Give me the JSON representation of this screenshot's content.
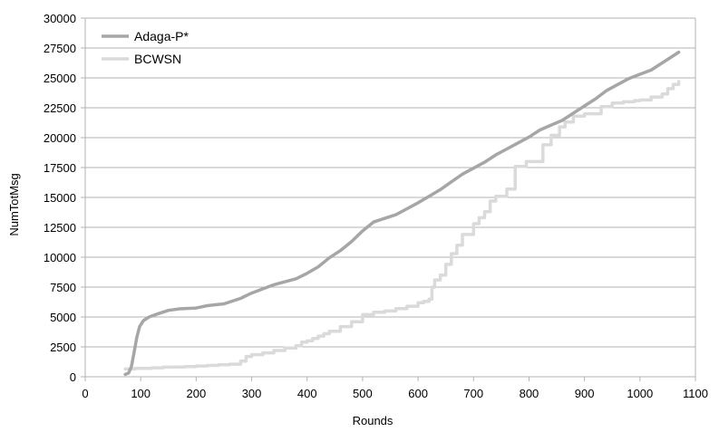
{
  "chart_data": {
    "type": "line",
    "title": "",
    "xlabel": "Rounds",
    "ylabel": "NumTotMsg",
    "xlim": [
      0,
      1100
    ],
    "ylim": [
      0,
      30000
    ],
    "xticks": [
      "0",
      "100",
      "200",
      "300",
      "400",
      "500",
      "600",
      "700",
      "800",
      "900",
      "1000",
      "1100"
    ],
    "yticks": [
      "0",
      "2500",
      "5000",
      "7500",
      "10000",
      "12500",
      "15000",
      "17500",
      "20000",
      "22500",
      "25000",
      "27500",
      "30000"
    ],
    "grid": "horizontal",
    "legend": "top-left",
    "series": [
      {
        "name": "Adaga-P*",
        "color": "#a6a6a6",
        "x": [
          72,
          78,
          83,
          88,
          93,
          98,
          105,
          115,
          130,
          150,
          170,
          200,
          220,
          250,
          280,
          300,
          320,
          340,
          360,
          380,
          400,
          420,
          440,
          460,
          480,
          500,
          520,
          540,
          560,
          580,
          600,
          620,
          640,
          660,
          680,
          700,
          720,
          740,
          760,
          780,
          800,
          820,
          840,
          860,
          880,
          900,
          920,
          940,
          960,
          980,
          1000,
          1020,
          1040,
          1060,
          1070
        ],
        "y": [
          200,
          300,
          800,
          2000,
          3300,
          4200,
          4700,
          5000,
          5250,
          5550,
          5680,
          5750,
          5950,
          6100,
          6550,
          7000,
          7350,
          7700,
          7950,
          8200,
          8650,
          9200,
          9950,
          10550,
          11300,
          12200,
          12950,
          13250,
          13550,
          14050,
          14550,
          15100,
          15650,
          16300,
          16950,
          17450,
          17950,
          18550,
          19050,
          19550,
          20050,
          20650,
          21050,
          21450,
          22050,
          22650,
          23250,
          23950,
          24450,
          24950,
          25300,
          25650,
          26250,
          26850,
          27150
        ]
      },
      {
        "name": "BCWSN",
        "color": "#dadada",
        "x": [
          72,
          90,
          100,
          120,
          140,
          160,
          180,
          200,
          220,
          240,
          260,
          280,
          290,
          300,
          320,
          340,
          360,
          380,
          390,
          400,
          410,
          420,
          430,
          440,
          460,
          480,
          500,
          520,
          540,
          560,
          580,
          600,
          610,
          620,
          625,
          630,
          640,
          650,
          660,
          670,
          680,
          700,
          710,
          720,
          730,
          740,
          760,
          775,
          795,
          815,
          825,
          840,
          855,
          865,
          880,
          900,
          930,
          950,
          970,
          990,
          1000,
          1020,
          1040,
          1050,
          1060,
          1070
        ],
        "y": [
          650,
          700,
          700,
          750,
          800,
          820,
          850,
          900,
          950,
          1000,
          1050,
          1300,
          1700,
          1850,
          2000,
          2200,
          2400,
          2600,
          2900,
          3000,
          3200,
          3400,
          3600,
          3800,
          4200,
          4600,
          5200,
          5400,
          5500,
          5700,
          5900,
          6200,
          6300,
          6500,
          7500,
          8100,
          8500,
          9400,
          10300,
          11000,
          11900,
          12800,
          13300,
          13800,
          14700,
          15100,
          15700,
          17600,
          18000,
          18000,
          19400,
          20200,
          20900,
          21300,
          21800,
          22000,
          22600,
          22900,
          23000,
          23100,
          23150,
          23400,
          23650,
          24100,
          24450,
          24700
        ]
      }
    ]
  }
}
